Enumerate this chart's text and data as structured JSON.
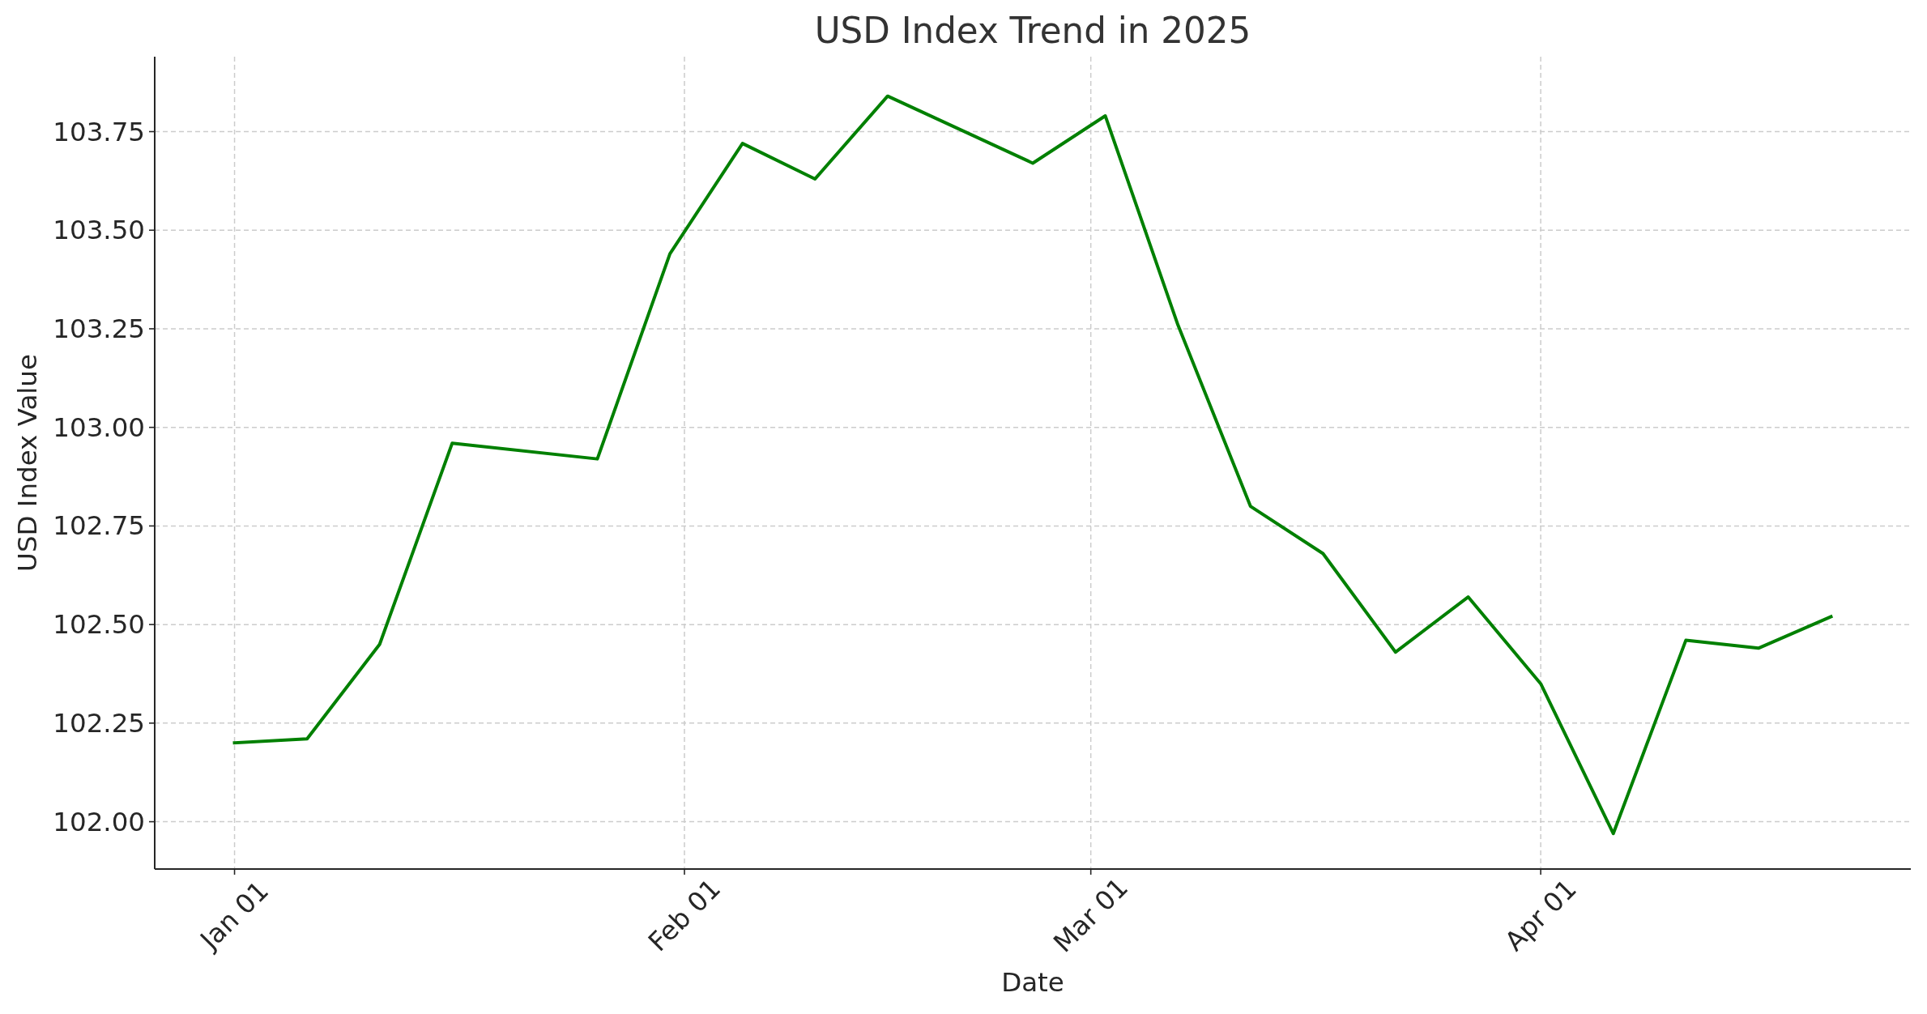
{
  "chart_data": {
    "type": "line",
    "title": "USD Index Trend in 2025",
    "xlabel": "Date",
    "ylabel": "USD Index Value",
    "x": [
      "2025-01-01",
      "2025-01-06",
      "2025-01-11",
      "2025-01-16",
      "2025-01-26",
      "2025-01-31",
      "2025-02-05",
      "2025-02-10",
      "2025-02-15",
      "2025-02-25",
      "2025-03-02",
      "2025-03-07",
      "2025-03-12",
      "2025-03-17",
      "2025-03-22",
      "2025-03-27",
      "2025-04-01",
      "2025-04-06",
      "2025-04-11",
      "2025-04-16",
      "2025-04-21"
    ],
    "series": [
      {
        "color": "#008000",
        "values": [
          102.2,
          102.21,
          102.45,
          102.96,
          102.92,
          103.44,
          103.72,
          103.63,
          103.84,
          103.67,
          103.79,
          103.26,
          102.8,
          102.68,
          102.43,
          102.57,
          102.35,
          101.97,
          102.46,
          102.44,
          102.52
        ]
      }
    ],
    "xlim": [
      "2024-12-26T12:00",
      "2025-04-26T12:00"
    ],
    "ylim": [
      101.88,
      103.94
    ],
    "xticks": [
      {
        "value": "2025-01-01",
        "label": "Jan 01"
      },
      {
        "value": "2025-02-01",
        "label": "Feb 01"
      },
      {
        "value": "2025-03-01",
        "label": "Mar 01"
      },
      {
        "value": "2025-04-01",
        "label": "Apr 01"
      }
    ],
    "yticks": [
      {
        "value": 102,
        "label": "102.00"
      },
      102.25,
      {
        "value": 102.5,
        "label": "102.50"
      },
      102.75,
      {
        "value": 103,
        "label": "103.00"
      },
      103.25,
      {
        "value": 103.5,
        "label": "103.50"
      },
      103.75
    ],
    "grid": true,
    "line_style": "solid"
  }
}
